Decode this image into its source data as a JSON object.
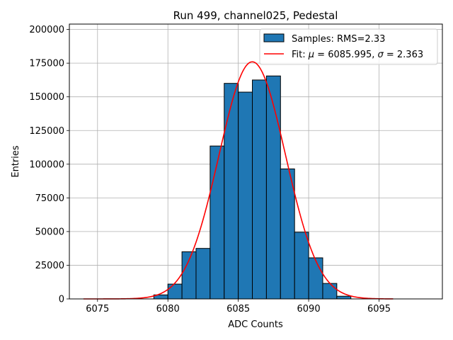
{
  "chart_data": {
    "type": "bar",
    "title": "Run 499, channel025, Pedestal",
    "xlabel": "ADC Counts",
    "ylabel": "Entries",
    "xlim": [
      6073,
      6099.5
    ],
    "ylim": [
      0,
      204000
    ],
    "xticks": [
      6075,
      6080,
      6085,
      6090,
      6095
    ],
    "yticks": [
      0,
      25000,
      50000,
      75000,
      100000,
      125000,
      150000,
      175000,
      200000
    ],
    "grid": true,
    "legend_position": "top-right",
    "bar_color": "#1f77b4",
    "fit_color": "#ff0000",
    "histogram": {
      "name": "Samples: RMS=2.33",
      "bin_edges": [
        6079,
        6080,
        6081,
        6082,
        6083,
        6084,
        6085,
        6086,
        6087,
        6088,
        6089,
        6090,
        6091,
        6092,
        6093
      ],
      "counts": [
        3000,
        11000,
        35000,
        37500,
        113500,
        160000,
        153500,
        162500,
        165500,
        96500,
        49500,
        30500,
        11500,
        2000
      ]
    },
    "fit": {
      "name": "Fit: μ = 6085.995, σ = 2.363",
      "label_parts": [
        "Fit: ",
        "μ",
        " = 6085.995, ",
        "σ",
        " = 2.363"
      ],
      "mu": 6085.995,
      "sigma": 2.363,
      "amplitude": 176000,
      "x_range": [
        6074,
        6096
      ]
    }
  }
}
